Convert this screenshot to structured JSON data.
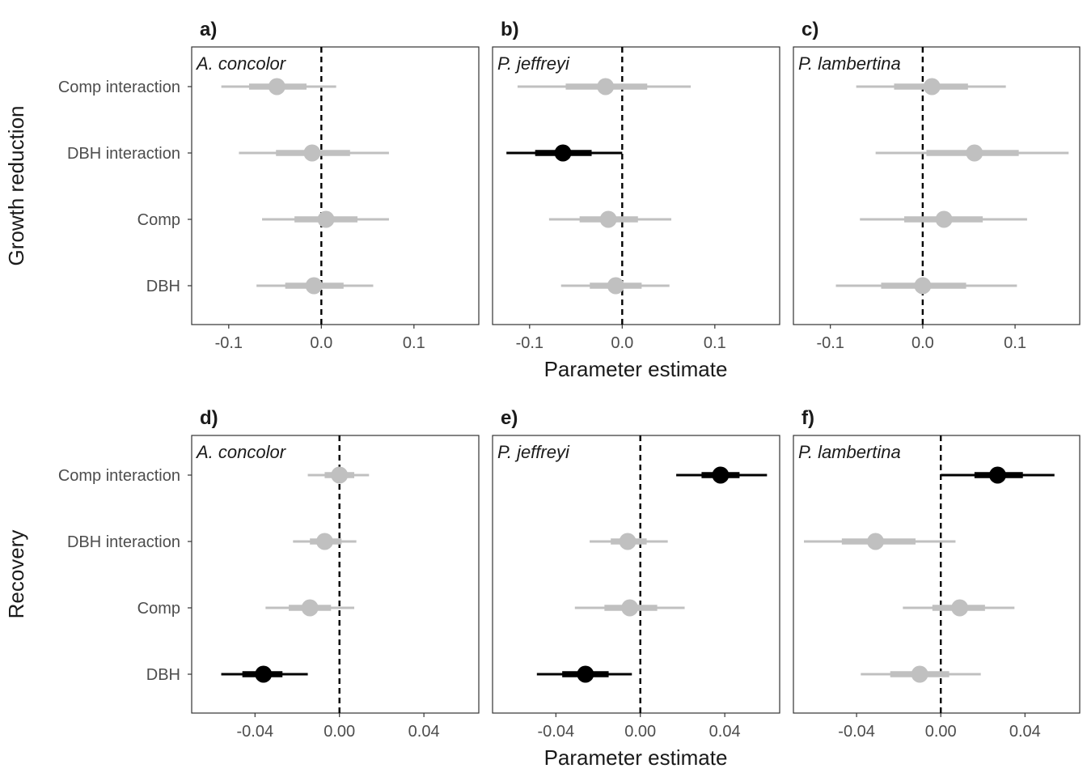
{
  "chart_data": {
    "type": "scatter",
    "subtype": "coefficient-interval-plot",
    "xlabel": "Parameter estimate",
    "colors": {
      "significant": "#000000",
      "nonsignificant": "#c0c0c0"
    },
    "rows": [
      {
        "ylabel": "Growth reduction",
        "xlim": [
          -0.14,
          0.17
        ],
        "xticks": [
          -0.1,
          0.0,
          0.1
        ],
        "xtick_labels": [
          "-0.1",
          "0.0",
          "0.1"
        ],
        "categories": [
          "Comp interaction",
          "DBH interaction",
          "Comp",
          "DBH"
        ],
        "panels": [
          {
            "tag": "a)",
            "species": "A. concolor",
            "points": [
              {
                "term": "Comp interaction",
                "est": -0.048,
                "inner": [
                  -0.078,
                  -0.016
                ],
                "outer": [
                  -0.108,
                  0.016
                ],
                "significant": false
              },
              {
                "term": "DBH interaction",
                "est": -0.01,
                "inner": [
                  -0.049,
                  0.031
                ],
                "outer": [
                  -0.089,
                  0.073
                ],
                "significant": false
              },
              {
                "term": "Comp",
                "est": 0.005,
                "inner": [
                  -0.029,
                  0.039
                ],
                "outer": [
                  -0.064,
                  0.073
                ],
                "significant": false
              },
              {
                "term": "DBH",
                "est": -0.008,
                "inner": [
                  -0.039,
                  0.024
                ],
                "outer": [
                  -0.07,
                  0.056
                ],
                "significant": false
              }
            ]
          },
          {
            "tag": "b)",
            "species": "P. jeffreyi",
            "points": [
              {
                "term": "Comp interaction",
                "est": -0.018,
                "inner": [
                  -0.061,
                  0.027
                ],
                "outer": [
                  -0.113,
                  0.074
                ],
                "significant": false
              },
              {
                "term": "DBH interaction",
                "est": -0.064,
                "inner": [
                  -0.094,
                  -0.033
                ],
                "outer": [
                  -0.125,
                  0.0
                ],
                "significant": true
              },
              {
                "term": "Comp",
                "est": -0.015,
                "inner": [
                  -0.046,
                  0.017
                ],
                "outer": [
                  -0.079,
                  0.053
                ],
                "significant": false
              },
              {
                "term": "DBH",
                "est": -0.007,
                "inner": [
                  -0.035,
                  0.021
                ],
                "outer": [
                  -0.066,
                  0.051
                ],
                "significant": false
              }
            ]
          },
          {
            "tag": "c)",
            "species": "P. lambertina",
            "points": [
              {
                "term": "Comp interaction",
                "est": 0.01,
                "inner": [
                  -0.031,
                  0.049
                ],
                "outer": [
                  -0.072,
                  0.09
                ],
                "significant": false
              },
              {
                "term": "DBH interaction",
                "est": 0.056,
                "inner": [
                  0.004,
                  0.104
                ],
                "outer": [
                  -0.051,
                  0.158
                ],
                "significant": false
              },
              {
                "term": "Comp",
                "est": 0.023,
                "inner": [
                  -0.02,
                  0.065
                ],
                "outer": [
                  -0.068,
                  0.113
                ],
                "significant": false
              },
              {
                "term": "DBH",
                "est": 0.0,
                "inner": [
                  -0.045,
                  0.047
                ],
                "outer": [
                  -0.094,
                  0.102
                ],
                "significant": false
              }
            ]
          }
        ]
      },
      {
        "ylabel": "Recovery",
        "xlim": [
          -0.07,
          0.066
        ],
        "xticks": [
          -0.04,
          0.0,
          0.04
        ],
        "xtick_labels": [
          "-0.04",
          "0.00",
          "0.04"
        ],
        "categories": [
          "Comp interaction",
          "DBH interaction",
          "Comp",
          "DBH"
        ],
        "panels": [
          {
            "tag": "d)",
            "species": "A. concolor",
            "points": [
              {
                "term": "Comp interaction",
                "est": 0.0,
                "inner": [
                  -0.007,
                  0.007
                ],
                "outer": [
                  -0.015,
                  0.014
                ],
                "significant": false
              },
              {
                "term": "DBH interaction",
                "est": -0.007,
                "inner": [
                  -0.014,
                  0.001
                ],
                "outer": [
                  -0.022,
                  0.008
                ],
                "significant": false
              },
              {
                "term": "Comp",
                "est": -0.014,
                "inner": [
                  -0.024,
                  -0.004
                ],
                "outer": [
                  -0.035,
                  0.007
                ],
                "significant": false
              },
              {
                "term": "DBH",
                "est": -0.036,
                "inner": [
                  -0.046,
                  -0.027
                ],
                "outer": [
                  -0.056,
                  -0.015
                ],
                "significant": true
              }
            ]
          },
          {
            "tag": "e)",
            "species": "P. jeffreyi",
            "points": [
              {
                "term": "Comp interaction",
                "est": 0.038,
                "inner": [
                  0.029,
                  0.047
                ],
                "outer": [
                  0.017,
                  0.06
                ],
                "significant": true
              },
              {
                "term": "DBH interaction",
                "est": -0.006,
                "inner": [
                  -0.014,
                  0.003
                ],
                "outer": [
                  -0.024,
                  0.013
                ],
                "significant": false
              },
              {
                "term": "Comp",
                "est": -0.005,
                "inner": [
                  -0.017,
                  0.008
                ],
                "outer": [
                  -0.031,
                  0.021
                ],
                "significant": false
              },
              {
                "term": "DBH",
                "est": -0.026,
                "inner": [
                  -0.037,
                  -0.015
                ],
                "outer": [
                  -0.049,
                  -0.004
                ],
                "significant": true
              }
            ]
          },
          {
            "tag": "f)",
            "species": "P. lambertina",
            "points": [
              {
                "term": "Comp interaction",
                "est": 0.027,
                "inner": [
                  0.016,
                  0.039
                ],
                "outer": [
                  0.0,
                  0.054
                ],
                "significant": true
              },
              {
                "term": "DBH interaction",
                "est": -0.031,
                "inner": [
                  -0.047,
                  -0.012
                ],
                "outer": [
                  -0.065,
                  0.007
                ],
                "significant": false
              },
              {
                "term": "Comp",
                "est": 0.009,
                "inner": [
                  -0.004,
                  0.021
                ],
                "outer": [
                  -0.018,
                  0.035
                ],
                "significant": false
              },
              {
                "term": "DBH",
                "est": -0.01,
                "inner": [
                  -0.024,
                  0.004
                ],
                "outer": [
                  -0.038,
                  0.019
                ],
                "significant": false
              }
            ]
          }
        ]
      }
    ]
  }
}
